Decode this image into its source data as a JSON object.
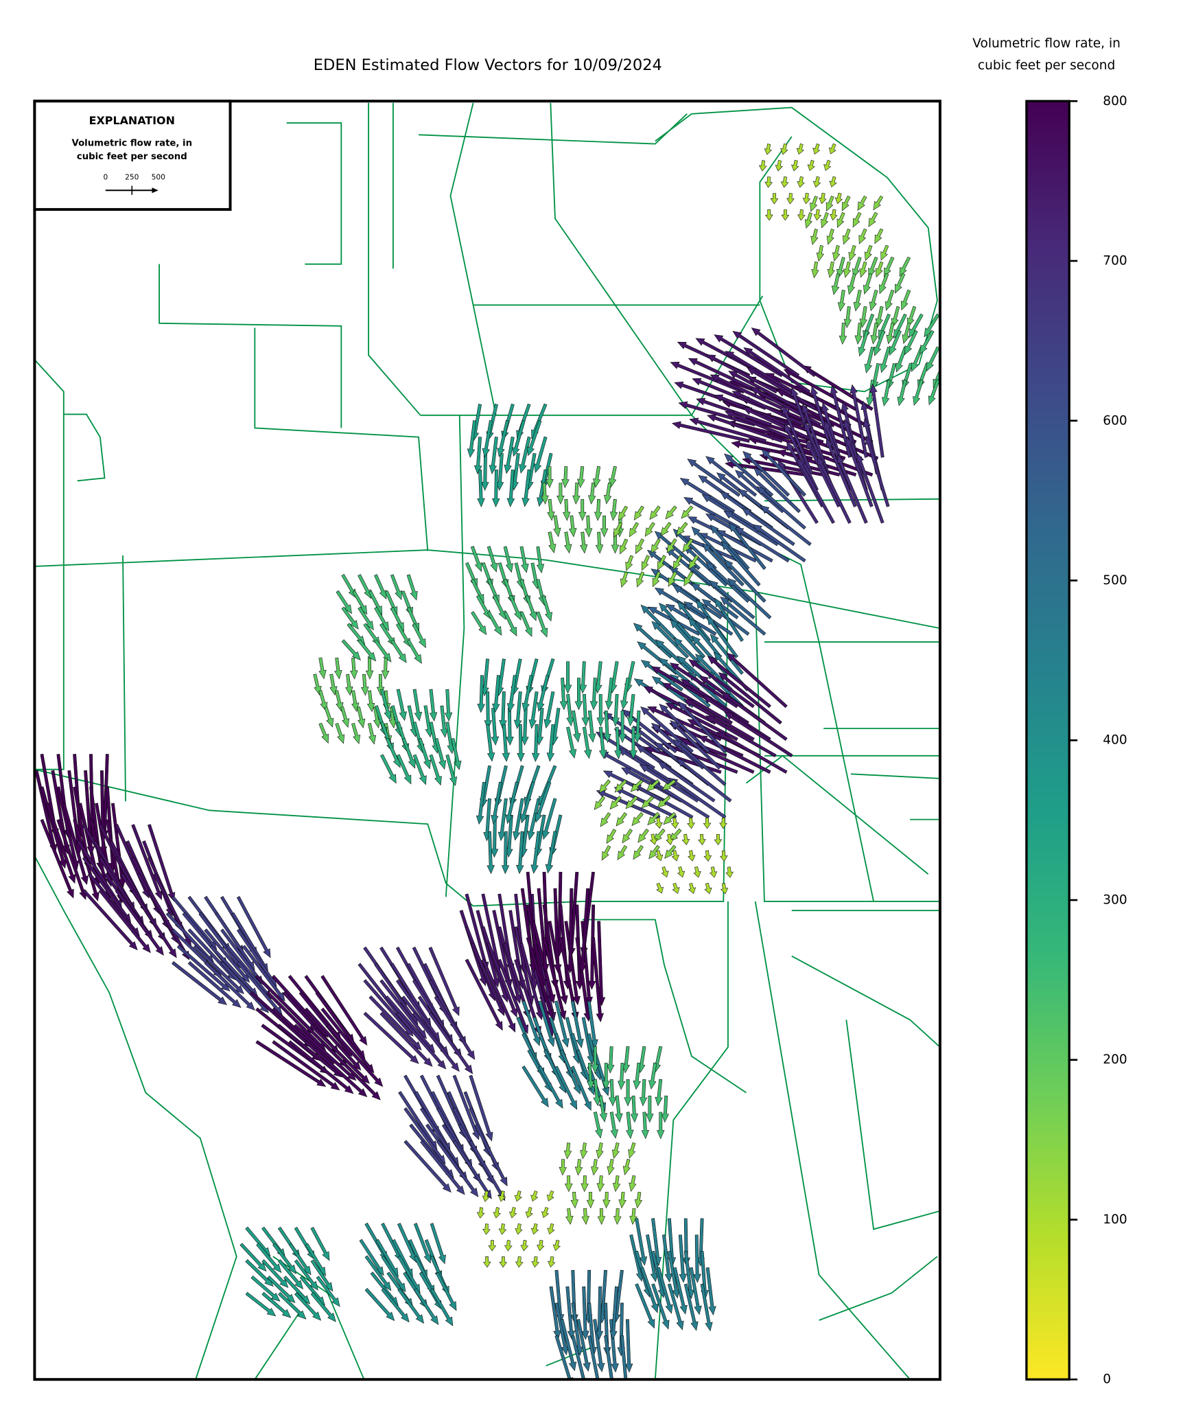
{
  "chart_data": {
    "type": "quiver",
    "title": "EDEN Estimated Flow Vectors for 10/09/2024",
    "map_line_color": "#009245",
    "colorbar": {
      "label": [
        "Volumetric flow rate, in",
        "cubic feet per second"
      ],
      "lim": [
        0,
        800
      ],
      "ticks": [
        0,
        100,
        200,
        300,
        400,
        500,
        600,
        700,
        800
      ],
      "colormap": [
        "#fde725",
        "#b5de2b",
        "#6ece58",
        "#35b779",
        "#1f9e89",
        "#26828e",
        "#31688e",
        "#3e4989",
        "#482878",
        "#440154"
      ]
    },
    "legend": {
      "title": "EXPLANATION",
      "label": [
        "Volumetric flow rate, in",
        "cubic feet per second"
      ],
      "scale_ticks": [
        0,
        250,
        500
      ]
    },
    "vectors": [
      {
        "value": 100,
        "direction": 100
      },
      {
        "value": 150,
        "direction": 110
      },
      {
        "value": 200,
        "direction": 105
      },
      {
        "value": 250,
        "direction": 110
      },
      {
        "value": 780,
        "direction": 200
      },
      {
        "value": 750,
        "direction": 205
      },
      {
        "value": 700,
        "direction": 250
      },
      {
        "value": 600,
        "direction": 215
      },
      {
        "value": 550,
        "direction": 220
      },
      {
        "value": 480,
        "direction": 225
      },
      {
        "value": 760,
        "direction": 210
      },
      {
        "value": 650,
        "direction": 215
      },
      {
        "value": 350,
        "direction": 100
      },
      {
        "value": 200,
        "direction": 90
      },
      {
        "value": 150,
        "direction": 120
      },
      {
        "value": 250,
        "direction": 70
      },
      {
        "value": 250,
        "direction": 60
      },
      {
        "value": 200,
        "direction": 80
      },
      {
        "value": 300,
        "direction": 75
      },
      {
        "value": 350,
        "direction": 95
      },
      {
        "value": 300,
        "direction": 90
      },
      {
        "value": 400,
        "direction": 100
      },
      {
        "value": 150,
        "direction": 130
      },
      {
        "value": 100,
        "direction": 80
      },
      {
        "value": 800,
        "direction": 80
      },
      {
        "value": 760,
        "direction": 60
      },
      {
        "value": 650,
        "direction": 50
      },
      {
        "value": 780,
        "direction": 45
      },
      {
        "value": 700,
        "direction": 55
      },
      {
        "value": 750,
        "direction": 75
      },
      {
        "value": 800,
        "direction": 85
      },
      {
        "value": 650,
        "direction": 60
      },
      {
        "value": 450,
        "direction": 70
      },
      {
        "value": 250,
        "direction": 90
      },
      {
        "value": 100,
        "direction": 100
      },
      {
        "value": 150,
        "direction": 95
      },
      {
        "value": 450,
        "direction": 80
      },
      {
        "value": 500,
        "direction": 85
      },
      {
        "value": 400,
        "direction": 60
      },
      {
        "value": 350,
        "direction": 50
      }
    ]
  }
}
